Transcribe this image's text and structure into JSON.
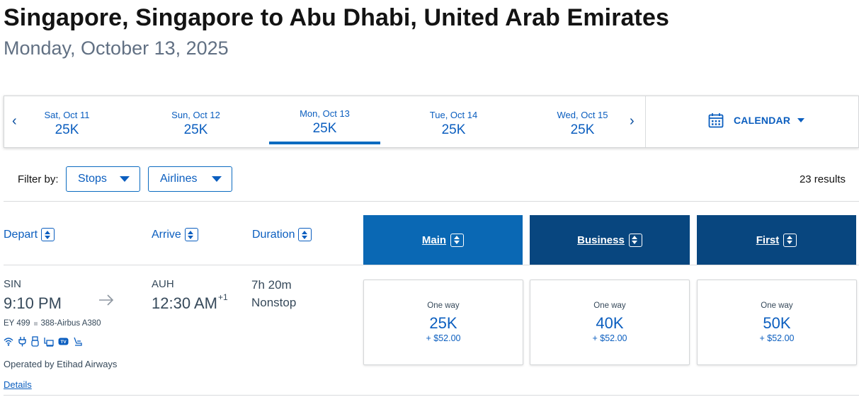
{
  "header": {
    "title": "Singapore, Singapore to Abu Dhabi, United Arab Emirates",
    "date": "Monday, October 13, 2025"
  },
  "date_strip": {
    "tabs": [
      {
        "label": "Sat, Oct 11",
        "price": "25K",
        "active": false
      },
      {
        "label": "Sun, Oct 12",
        "price": "25K",
        "active": false
      },
      {
        "label": "Mon, Oct 13",
        "price": "25K",
        "active": true
      },
      {
        "label": "Tue, Oct 14",
        "price": "25K",
        "active": false
      },
      {
        "label": "Wed, Oct 15",
        "price": "25K",
        "active": false
      }
    ],
    "prev_arrow": "‹",
    "next_arrow": "›",
    "calendar_label": "CALENDAR"
  },
  "filters": {
    "label": "Filter by:",
    "stops_label": "Stops",
    "airlines_label": "Airlines",
    "results": "23 results"
  },
  "columns": {
    "depart": "Depart",
    "arrive": "Arrive",
    "duration": "Duration",
    "cabins": [
      "Main",
      "Business",
      "First"
    ]
  },
  "flight": {
    "depart_airport": "SIN",
    "depart_time": "9:10 PM",
    "arrive_airport": "AUH",
    "arrive_time": "12:30 AM",
    "arrive_day_offset": "+1",
    "duration": "7h 20m",
    "stops": "Nonstop",
    "flight_number": "EY 499",
    "aircraft": "388-Airbus A380",
    "amenities": [
      "wifi-icon",
      "power-plug-icon",
      "usb-icon",
      "entertainment-icon",
      "tv-icon",
      "lie-flat-seat-icon"
    ],
    "tv_badge": "TV",
    "operated_by": "Operated by Etihad Airways",
    "details_label": "Details",
    "fares": [
      {
        "cabin": "Main",
        "label": "One way",
        "price": "25K",
        "tax": "+ $52.00"
      },
      {
        "cabin": "Business",
        "label": "One way",
        "price": "40K",
        "tax": "+ $52.00"
      },
      {
        "cabin": "First",
        "label": "One way",
        "price": "50K",
        "tax": "+ $52.00"
      }
    ]
  },
  "colors": {
    "link_blue": "#0b5ebf",
    "main_cabin": "#0a68b4",
    "premium_cabin": "#08467f",
    "text": "#36495a",
    "title": "#131313"
  }
}
